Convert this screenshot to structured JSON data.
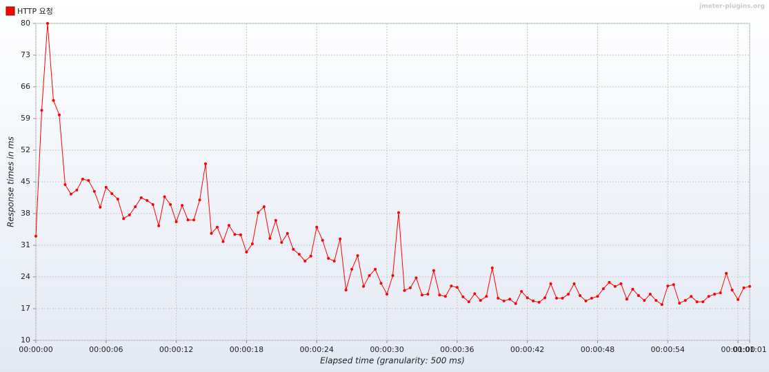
{
  "chart_data": {
    "type": "line",
    "watermark": "jmeter-plugins.org",
    "xlabel": "Elapsed time (granularity: 500 ms)",
    "ylabel": "Response times in ms",
    "legend": "top-left",
    "grid": true,
    "xlim": [
      0,
      61
    ],
    "ylim": [
      10,
      80
    ],
    "yticks": [
      10,
      17,
      24,
      31,
      38,
      45,
      52,
      59,
      66,
      73,
      80
    ],
    "xticks": [
      {
        "value": 0,
        "label": "00:00:00"
      },
      {
        "value": 6,
        "label": "00:00:06"
      },
      {
        "value": 12,
        "label": "00:00:12"
      },
      {
        "value": 18,
        "label": "00:00:18"
      },
      {
        "value": 24,
        "label": "00:00:24"
      },
      {
        "value": 30,
        "label": "00:00:30"
      },
      {
        "value": 36,
        "label": "00:00:36"
      },
      {
        "value": 42,
        "label": "00:00:42"
      },
      {
        "value": 48,
        "label": "00:00:48"
      },
      {
        "value": 54,
        "label": "00:00:54"
      },
      {
        "value": 60,
        "label": "00:01:00"
      },
      {
        "value": 61,
        "label": "00:01:01"
      }
    ],
    "x": [
      0,
      0.5,
      1,
      1.5,
      2,
      2.5,
      3,
      3.5,
      4,
      4.5,
      5,
      5.5,
      6,
      6.5,
      7,
      7.5,
      8,
      8.5,
      9,
      9.5,
      10,
      10.5,
      11,
      11.5,
      12,
      12.5,
      13,
      13.5,
      14,
      14.5,
      15,
      15.5,
      16,
      16.5,
      17,
      17.5,
      18,
      18.5,
      19,
      19.5,
      20,
      20.5,
      21,
      21.5,
      22,
      22.5,
      23,
      23.5,
      24,
      24.5,
      25,
      25.5,
      26,
      26.5,
      27,
      27.5,
      28,
      28.5,
      29,
      29.5,
      30,
      30.5,
      31,
      31.5,
      32,
      32.5,
      33,
      33.5,
      34,
      34.5,
      35,
      35.5,
      36,
      36.5,
      37,
      37.5,
      38,
      38.5,
      39,
      39.5,
      40,
      40.5,
      41,
      41.5,
      42,
      42.5,
      43,
      43.5,
      44,
      44.5,
      45,
      45.5,
      46,
      46.5,
      47,
      47.5,
      48,
      48.5,
      49,
      49.5,
      50,
      50.5,
      51,
      51.5,
      52,
      52.5,
      53,
      53.5,
      54,
      54.5,
      55,
      55.5,
      56,
      56.5,
      57,
      57.5,
      58,
      58.5,
      59,
      59.5,
      60,
      60.5,
      61
    ],
    "series": [
      {
        "name": "HTTP 요청",
        "color": "#ff0000",
        "values": [
          33.0,
          60.8,
          80,
          63,
          59.8,
          44.4,
          42.3,
          43.2,
          45.6,
          45.3,
          42.9,
          39.4,
          43.8,
          42.4,
          41.2,
          36.9,
          37.7,
          39.5,
          41.5,
          40.9,
          40.0,
          35.3,
          41.7,
          40.0,
          36.2,
          39.8,
          36.6,
          36.6,
          41.0,
          49.0,
          33.6,
          35.0,
          31.8,
          35.4,
          33.4,
          33.3,
          29.5,
          31.3,
          38.2,
          39.5,
          32.5,
          36.5,
          31.6,
          33.6,
          30.1,
          29.0,
          27.5,
          28.6,
          35.0,
          32.1,
          28.1,
          27.5,
          32.4,
          21.1,
          25.7,
          28.7,
          21.9,
          24.3,
          25.7,
          22.6,
          20.2,
          24.3,
          38.2,
          21.0,
          21.6,
          23.8,
          20.0,
          20.2,
          25.4,
          20.0,
          19.7,
          22.0,
          21.7,
          19.6,
          18.5,
          20.3,
          18.8,
          19.7,
          26.0,
          19.3,
          18.7,
          19.1,
          18.1,
          20.8,
          19.4,
          18.7,
          18.4,
          19.4,
          22.5,
          19.3,
          19.3,
          20.2,
          22.5,
          19.9,
          18.7,
          19.3,
          19.7,
          21.4,
          22.8,
          21.9,
          22.5,
          19.1,
          21.3,
          19.9,
          18.8,
          20.2,
          18.8,
          17.9,
          22.0,
          22.3,
          18.2,
          18.8,
          19.7,
          18.5,
          18.5,
          19.7,
          20.2,
          20.5,
          24.8,
          21.1,
          19.0,
          21.6,
          21.9
        ]
      }
    ]
  }
}
